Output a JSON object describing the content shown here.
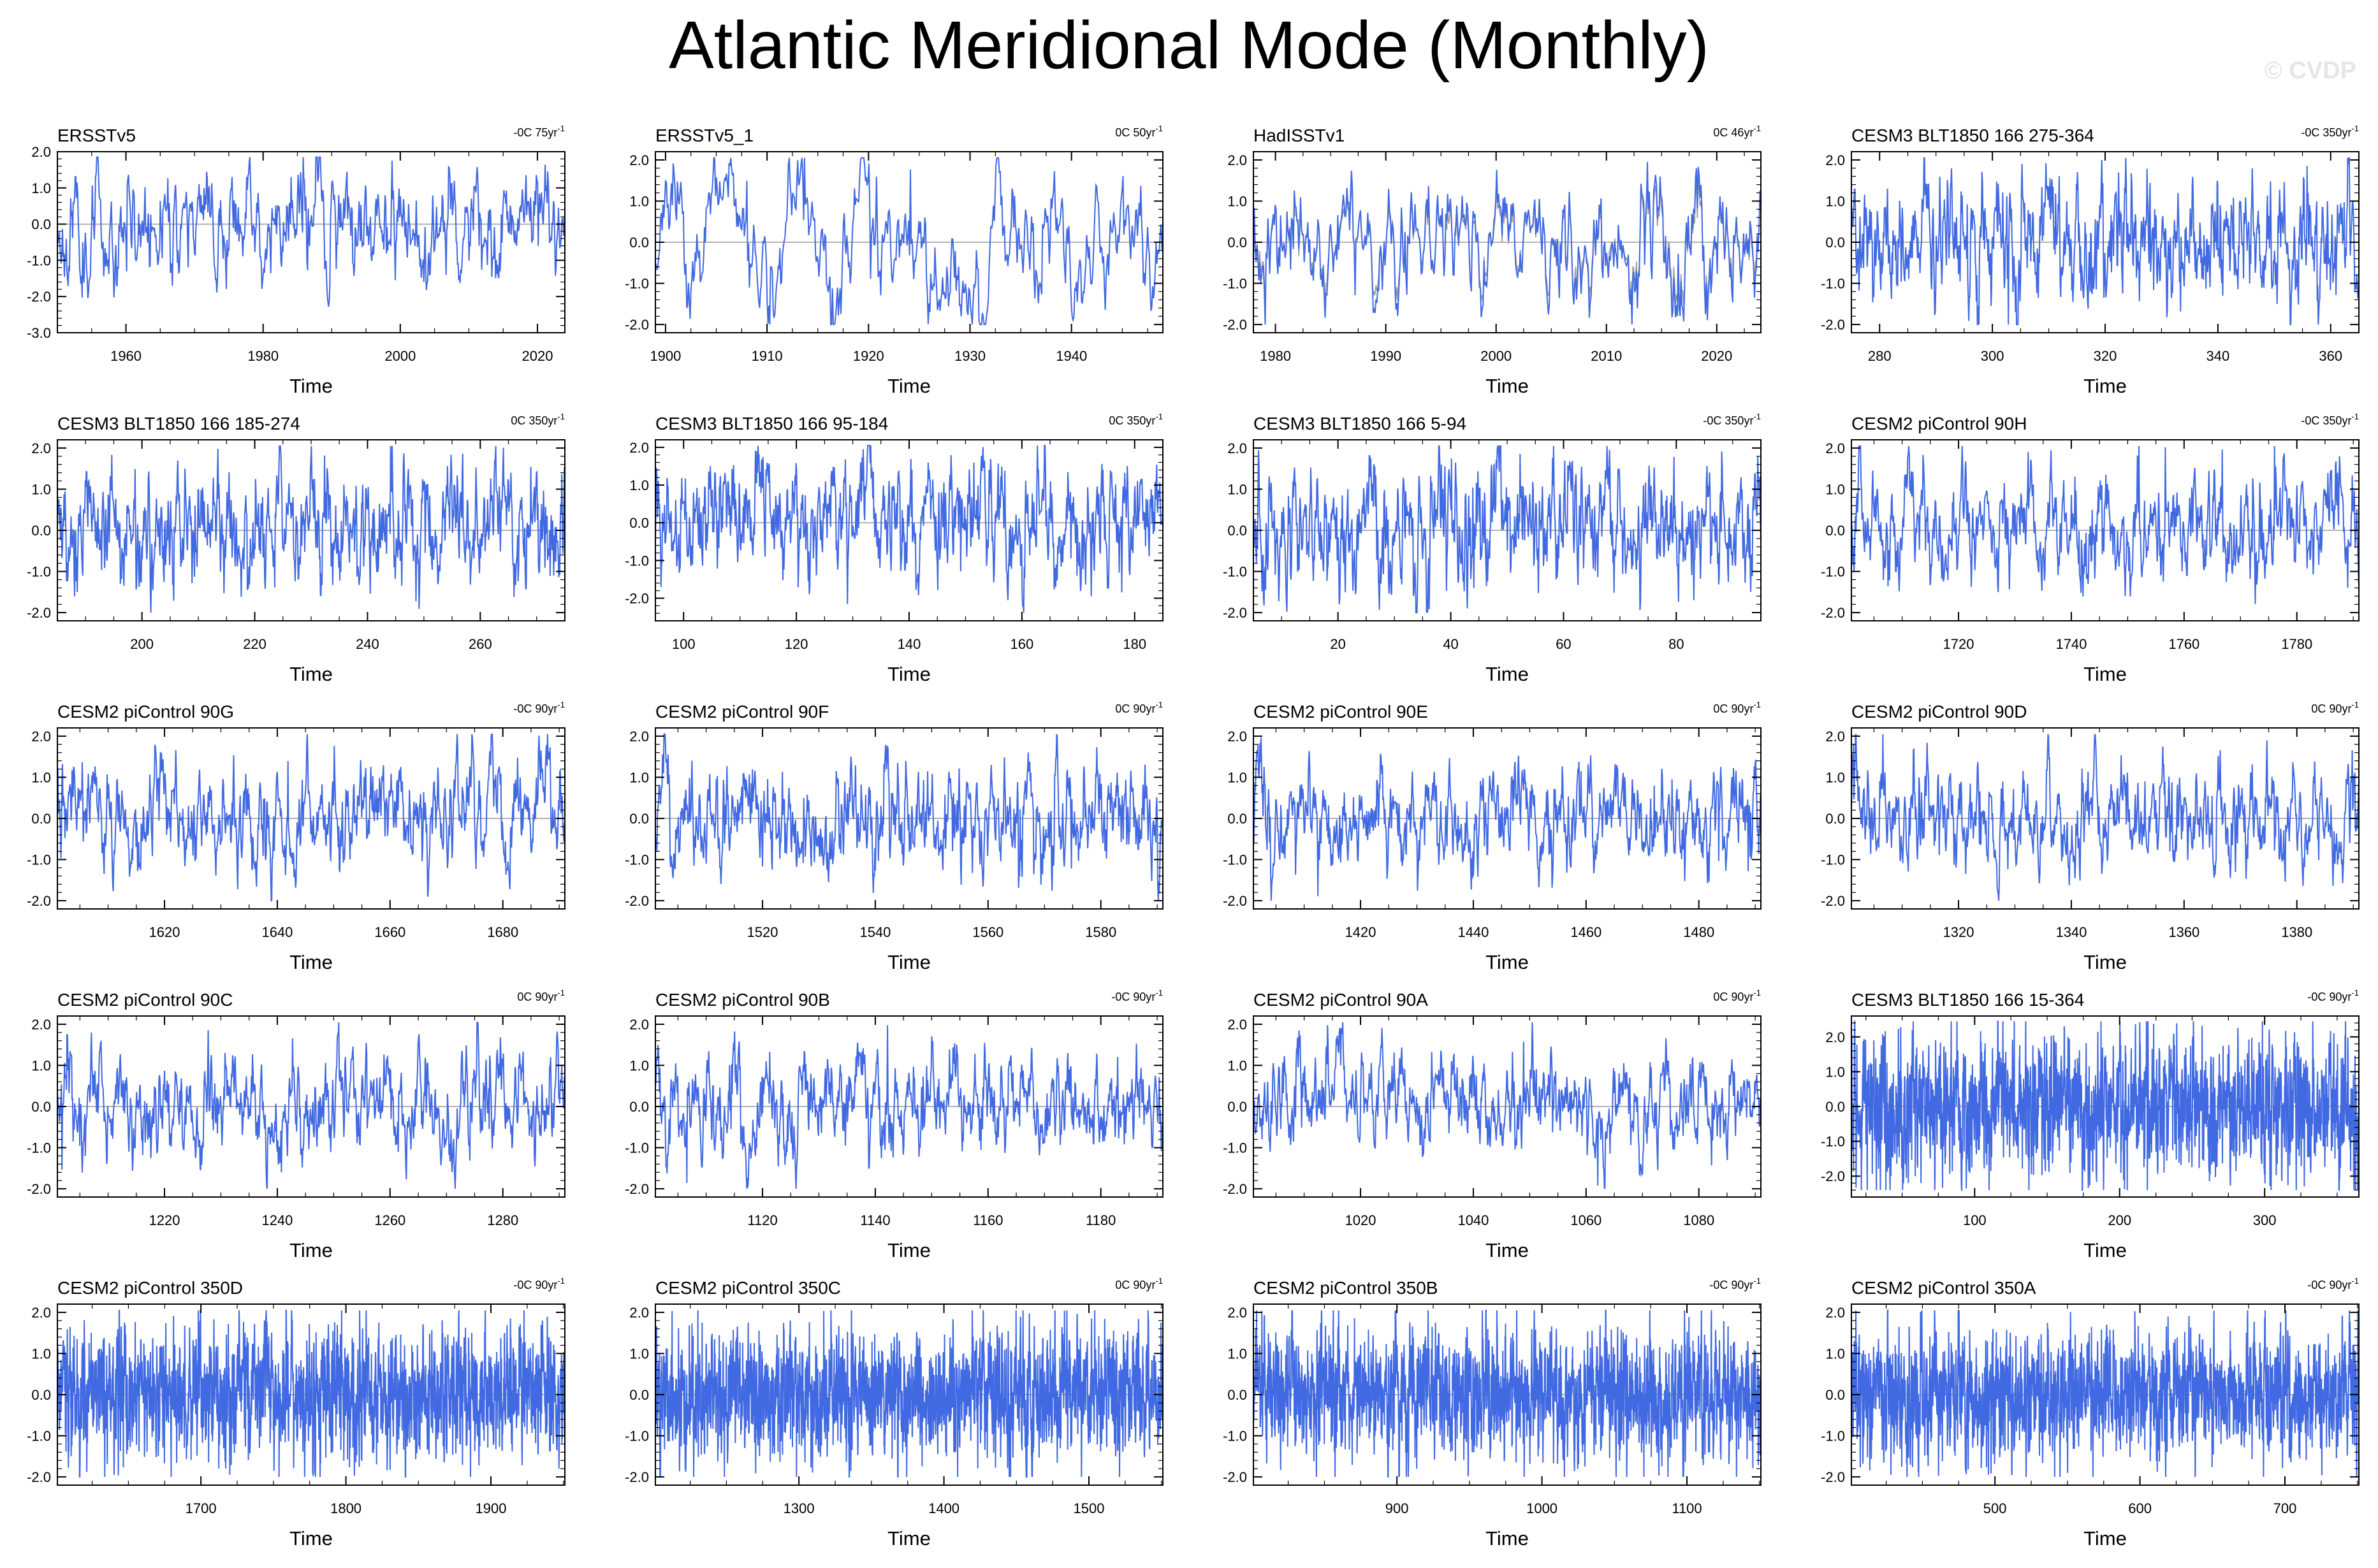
{
  "title": "Atlantic Meridional Mode (Monthly)",
  "watermark": "© CVDP",
  "colors": {
    "series": "#4169e1",
    "obs_overlay": "#9a9a9a",
    "axis": "#000000"
  },
  "chart_data": [
    {
      "type": "line",
      "title": "ERSSTv5",
      "trend": "-0C 75yr",
      "xlabel": "Time",
      "xlim": [
        1950,
        2024
      ],
      "ylim": [
        -3.0,
        2.0
      ],
      "xticks": [
        "1960",
        "1980",
        "2000",
        "2020"
      ],
      "yticks": [
        "2.0",
        "1.0",
        "0.0",
        "-1.0",
        "-2.0",
        "-3.0"
      ],
      "seed": 11,
      "amp": 0.55,
      "smooth": 0.82,
      "npts": 800
    },
    {
      "type": "line",
      "title": "ERSSTv5_1",
      "trend": "0C 50yr",
      "xlabel": "Time",
      "xlim": [
        1899,
        1949
      ],
      "ylim": [
        -2.2,
        2.2
      ],
      "xticks": [
        "1900",
        "1910",
        "1920",
        "1930",
        "1940"
      ],
      "yticks": [
        "2.0",
        "1.0",
        "0.0",
        "-1.0",
        "-2.0"
      ],
      "seed": 23,
      "amp": 0.6,
      "smooth": 0.88,
      "npts": 600
    },
    {
      "type": "line",
      "title": "HadISSTv1",
      "trend": "0C 46yr",
      "xlabel": "Time",
      "xlim": [
        1978,
        2024
      ],
      "ylim": [
        -2.2,
        2.2
      ],
      "xticks": [
        "1980",
        "1990",
        "2000",
        "2010",
        "2020"
      ],
      "yticks": [
        "2.0",
        "1.0",
        "0.0",
        "-1.0",
        "-2.0"
      ],
      "seed": 37,
      "amp": 0.55,
      "smooth": 0.8,
      "npts": 560,
      "overlay": true
    },
    {
      "type": "line",
      "title": "CESM3 BLT1850 166 275-364",
      "trend": "-0C 350yr",
      "xlabel": "Time",
      "xlim": [
        275,
        365
      ],
      "ylim": [
        -2.2,
        2.2
      ],
      "xticks": [
        "280",
        "300",
        "320",
        "340",
        "360"
      ],
      "yticks": [
        "2.0",
        "1.0",
        "0.0",
        "-1.0",
        "-2.0"
      ],
      "seed": 41,
      "amp": 0.5,
      "smooth": 0.7,
      "npts": 1000
    },
    {
      "type": "line",
      "title": "CESM3 BLT1850 166 185-274",
      "trend": "0C 350yr",
      "xlabel": "Time",
      "xlim": [
        185,
        275
      ],
      "ylim": [
        -2.2,
        2.2
      ],
      "xticks": [
        "200",
        "220",
        "240",
        "260"
      ],
      "yticks": [
        "2.0",
        "1.0",
        "0.0",
        "-1.0",
        "-2.0"
      ],
      "seed": 53,
      "amp": 0.5,
      "smooth": 0.7,
      "npts": 1000
    },
    {
      "type": "line",
      "title": "CESM3 BLT1850 166 95-184",
      "trend": "0C 350yr",
      "xlabel": "Time",
      "xlim": [
        95,
        185
      ],
      "ylim": [
        -2.6,
        2.2
      ],
      "xticks": [
        "100",
        "120",
        "140",
        "160",
        "180"
      ],
      "yticks": [
        "2.0",
        "1.0",
        "0.0",
        "-1.0",
        "-2.0"
      ],
      "seed": 67,
      "amp": 0.5,
      "smooth": 0.7,
      "npts": 1000
    },
    {
      "type": "line",
      "title": "CESM3 BLT1850 166 5-94",
      "trend": "-0C 350yr",
      "xlabel": "Time",
      "xlim": [
        5,
        95
      ],
      "ylim": [
        -2.2,
        2.2
      ],
      "xticks": [
        "20",
        "40",
        "60",
        "80"
      ],
      "yticks": [
        "2.0",
        "1.0",
        "0.0",
        "-1.0",
        "-2.0"
      ],
      "seed": 71,
      "amp": 0.5,
      "smooth": 0.7,
      "npts": 1000
    },
    {
      "type": "line",
      "title": "CESM2 piControl 90H",
      "trend": "-0C 350yr",
      "xlabel": "Time",
      "xlim": [
        1701,
        1791
      ],
      "ylim": [
        -2.2,
        2.2
      ],
      "xticks": [
        "1720",
        "1740",
        "1760",
        "1780"
      ],
      "yticks": [
        "2.0",
        "1.0",
        "0.0",
        "-1.0",
        "-2.0"
      ],
      "seed": 83,
      "amp": 0.45,
      "smooth": 0.8,
      "npts": 1000
    },
    {
      "type": "line",
      "title": "CESM2 piControl 90G",
      "trend": "-0C 90yr",
      "xlabel": "Time",
      "xlim": [
        1601,
        1691
      ],
      "ylim": [
        -2.2,
        2.2
      ],
      "xticks": [
        "1620",
        "1640",
        "1660",
        "1680"
      ],
      "yticks": [
        "2.0",
        "1.0",
        "0.0",
        "-1.0",
        "-2.0"
      ],
      "seed": 97,
      "amp": 0.45,
      "smooth": 0.8,
      "npts": 1000
    },
    {
      "type": "line",
      "title": "CESM2 piControl 90F",
      "trend": "0C 90yr",
      "xlabel": "Time",
      "xlim": [
        1501,
        1591
      ],
      "ylim": [
        -2.2,
        2.2
      ],
      "xticks": [
        "1520",
        "1540",
        "1560",
        "1580"
      ],
      "yticks": [
        "2.0",
        "1.0",
        "0.0",
        "-1.0",
        "-2.0"
      ],
      "seed": 101,
      "amp": 0.45,
      "smooth": 0.78,
      "npts": 1000
    },
    {
      "type": "line",
      "title": "CESM2 piControl 90E",
      "trend": "0C 90yr",
      "xlabel": "Time",
      "xlim": [
        1401,
        1491
      ],
      "ylim": [
        -2.2,
        2.2
      ],
      "xticks": [
        "1420",
        "1440",
        "1460",
        "1480"
      ],
      "yticks": [
        "2.0",
        "1.0",
        "0.0",
        "-1.0",
        "-2.0"
      ],
      "seed": 113,
      "amp": 0.4,
      "smooth": 0.78,
      "npts": 1000
    },
    {
      "type": "line",
      "title": "CESM2 piControl 90D",
      "trend": "0C 90yr",
      "xlabel": "Time",
      "xlim": [
        1301,
        1391
      ],
      "ylim": [
        -2.2,
        2.2
      ],
      "xticks": [
        "1320",
        "1340",
        "1360",
        "1380"
      ],
      "yticks": [
        "2.0",
        "1.0",
        "0.0",
        "-1.0",
        "-2.0"
      ],
      "seed": 127,
      "amp": 0.45,
      "smooth": 0.8,
      "npts": 1000
    },
    {
      "type": "line",
      "title": "CESM2 piControl 90C",
      "trend": "0C 90yr",
      "xlabel": "Time",
      "xlim": [
        1201,
        1291
      ],
      "ylim": [
        -2.2,
        2.2
      ],
      "xticks": [
        "1220",
        "1240",
        "1260",
        "1280"
      ],
      "yticks": [
        "2.0",
        "1.0",
        "0.0",
        "-1.0",
        "-2.0"
      ],
      "seed": 131,
      "amp": 0.45,
      "smooth": 0.8,
      "npts": 1000
    },
    {
      "type": "line",
      "title": "CESM2 piControl 90B",
      "trend": "-0C 90yr",
      "xlabel": "Time",
      "xlim": [
        1101,
        1191
      ],
      "ylim": [
        -2.2,
        2.2
      ],
      "xticks": [
        "1120",
        "1140",
        "1160",
        "1180"
      ],
      "yticks": [
        "2.0",
        "1.0",
        "0.0",
        "-1.0",
        "-2.0"
      ],
      "seed": 139,
      "amp": 0.4,
      "smooth": 0.78,
      "npts": 1000
    },
    {
      "type": "line",
      "title": "CESM2 piControl 90A",
      "trend": "0C 90yr",
      "xlabel": "Time",
      "xlim": [
        1001,
        1091
      ],
      "ylim": [
        -2.2,
        2.2
      ],
      "xticks": [
        "1020",
        "1040",
        "1060",
        "1080"
      ],
      "yticks": [
        "2.0",
        "1.0",
        "0.0",
        "-1.0",
        "-2.0"
      ],
      "seed": 149,
      "amp": 0.42,
      "smooth": 0.8,
      "npts": 1000
    },
    {
      "type": "line",
      "title": "CESM3 BLT1850 166 15-364",
      "trend": "-0C 90yr",
      "xlabel": "Time",
      "xlim": [
        15,
        365
      ],
      "ylim": [
        -2.6,
        2.6
      ],
      "xticks": [
        "100",
        "200",
        "300"
      ],
      "yticks": [
        "2.0",
        "1.0",
        "0.0",
        "-1.0",
        "-2.0"
      ],
      "seed": 151,
      "amp": 0.6,
      "smooth": 0.45,
      "npts": 2400
    },
    {
      "type": "line",
      "title": "CESM2 piControl 350D",
      "trend": "-0C 90yr",
      "xlabel": "Time",
      "xlim": [
        1601,
        1951
      ],
      "ylim": [
        -2.2,
        2.2
      ],
      "xticks": [
        "1700",
        "1800",
        "1900"
      ],
      "yticks": [
        "2.0",
        "1.0",
        "0.0",
        "-1.0",
        "-2.0"
      ],
      "seed": 163,
      "amp": 0.48,
      "smooth": 0.45,
      "npts": 2400
    },
    {
      "type": "line",
      "title": "CESM2 piControl 350C",
      "trend": "0C 90yr",
      "xlabel": "Time",
      "xlim": [
        1201,
        1551
      ],
      "ylim": [
        -2.2,
        2.2
      ],
      "xticks": [
        "1300",
        "1400",
        "1500"
      ],
      "yticks": [
        "2.0",
        "1.0",
        "0.0",
        "-1.0",
        "-2.0"
      ],
      "seed": 173,
      "amp": 0.48,
      "smooth": 0.45,
      "npts": 2400
    },
    {
      "type": "line",
      "title": "CESM2 piControl 350B",
      "trend": "-0C 90yr",
      "xlabel": "Time",
      "xlim": [
        801,
        1151
      ],
      "ylim": [
        -2.2,
        2.2
      ],
      "xticks": [
        "900",
        "1000",
        "1100"
      ],
      "yticks": [
        "2.0",
        "1.0",
        "0.0",
        "-1.0",
        "-2.0"
      ],
      "seed": 181,
      "amp": 0.48,
      "smooth": 0.45,
      "npts": 2400
    },
    {
      "type": "line",
      "title": "CESM2 piControl 350A",
      "trend": "-0C 90yr",
      "xlabel": "Time",
      "xlim": [
        401,
        751
      ],
      "ylim": [
        -2.2,
        2.2
      ],
      "xticks": [
        "500",
        "600",
        "700"
      ],
      "yticks": [
        "2.0",
        "1.0",
        "0.0",
        "-1.0",
        "-2.0"
      ],
      "seed": 191,
      "amp": 0.48,
      "smooth": 0.45,
      "npts": 2400
    }
  ]
}
